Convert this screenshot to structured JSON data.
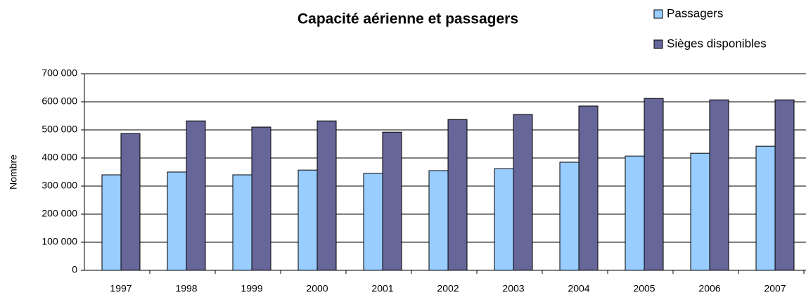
{
  "chart_data": {
    "type": "bar",
    "title": "Capacité aérienne et passagers",
    "y_label": "Nombre",
    "categories": [
      "1997",
      "1998",
      "1999",
      "2000",
      "2001",
      "2002",
      "2003",
      "2004",
      "2005",
      "2006",
      "2007"
    ],
    "series": [
      {
        "name": "Passagers",
        "color": "#99ccff",
        "values": [
          340000,
          350000,
          340000,
          357000,
          345000,
          355000,
          362000,
          385000,
          407000,
          417000,
          442000
        ]
      },
      {
        "name": "Sièges disponibles",
        "color": "#666699",
        "values": [
          487000,
          532000,
          510000,
          532000,
          492000,
          537000,
          555000,
          585000,
          612000,
          607000,
          607000
        ]
      }
    ],
    "ylim": [
      0,
      700000
    ],
    "yticks": [
      0,
      {
        "value": 100000,
        "label": "100 000"
      },
      {
        "value": 200000,
        "label": "200 000"
      },
      {
        "value": 300000,
        "label": "300 000"
      },
      {
        "value": 400000,
        "label": "400 000"
      },
      {
        "value": 500000,
        "label": "500 000"
      },
      {
        "value": 600000,
        "label": "600 000"
      },
      {
        "value": 700000,
        "label": "700 000"
      }
    ],
    "grid": true,
    "legend": "top-right"
  }
}
